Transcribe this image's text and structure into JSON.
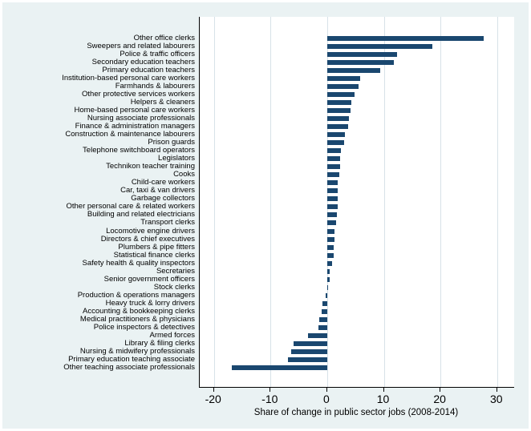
{
  "chart_data": {
    "type": "bar",
    "orientation": "horizontal",
    "title": "",
    "xlabel": "Share of change in public sector jobs (2008-2014)",
    "ylabel": "",
    "xlim": [
      -22.5,
      33
    ],
    "x_ticks": [
      -20,
      -10,
      0,
      10,
      20,
      30
    ],
    "x_tick_labels": [
      "-20",
      "-10",
      "0",
      "10",
      "20",
      "30"
    ],
    "grid": true,
    "legend": false,
    "categories": [
      "Other office clerks",
      "Sweepers and related labourers",
      "Police & traffic officers",
      "Secondary education teachers",
      "Primary education teachers",
      "Institution-based personal care workers",
      "Farmhands & labourers",
      "Other protective services workers",
      "Helpers & cleaners",
      "Home-based personal care workers",
      "Nursing associate professionals",
      "Finance & administration managers",
      "Construction & maintenance labourers",
      "Prison guards",
      "Telephone switchboard operators",
      "Legislators",
      "Technikon teacher training",
      "Cooks",
      "Child-care workers",
      "Car, taxi & van drivers",
      "Garbage collectors",
      "Other personal care & related workers",
      "Building and related electricians",
      "Transport clerks",
      "Locomotive engine drivers",
      "Directors & chief executives",
      "Plumbers & pipe fitters",
      "Statistical finance clerks",
      "Safety health & quality inspectors",
      "Secretaries",
      "Senior government officers",
      "Stock clerks",
      "Production & operations managers",
      "Heavy truck & lorry drivers",
      "Accounting & bookkeeping clerks",
      "Medical practitioners & physicians",
      "Police inspectors & detectives",
      "Armed forces",
      "Library & filing clerks",
      "Nursing & midwifery professionals",
      "Primary education teaching associate",
      "Other teaching associate professionals"
    ],
    "values": [
      27.7,
      18.5,
      12.4,
      11.8,
      9.4,
      5.8,
      5.5,
      4.8,
      4.2,
      4.1,
      3.8,
      3.7,
      3.1,
      3.0,
      2.4,
      2.35,
      2.3,
      2.2,
      1.9,
      1.9,
      1.85,
      1.8,
      1.75,
      1.6,
      1.3,
      1.25,
      1.2,
      1.15,
      0.9,
      0.5,
      0.4,
      0.15,
      -0.25,
      -0.9,
      -1.0,
      -1.4,
      -1.5,
      -3.4,
      -6.0,
      -6.4,
      -7.0,
      -16.8
    ],
    "colors": {
      "bar": "#1a476f",
      "plot_background": "#ffffff",
      "graph_background": "#eaf2f3",
      "gridline": "#d7e2e8",
      "axis": "#000000",
      "text": "#000000"
    }
  }
}
